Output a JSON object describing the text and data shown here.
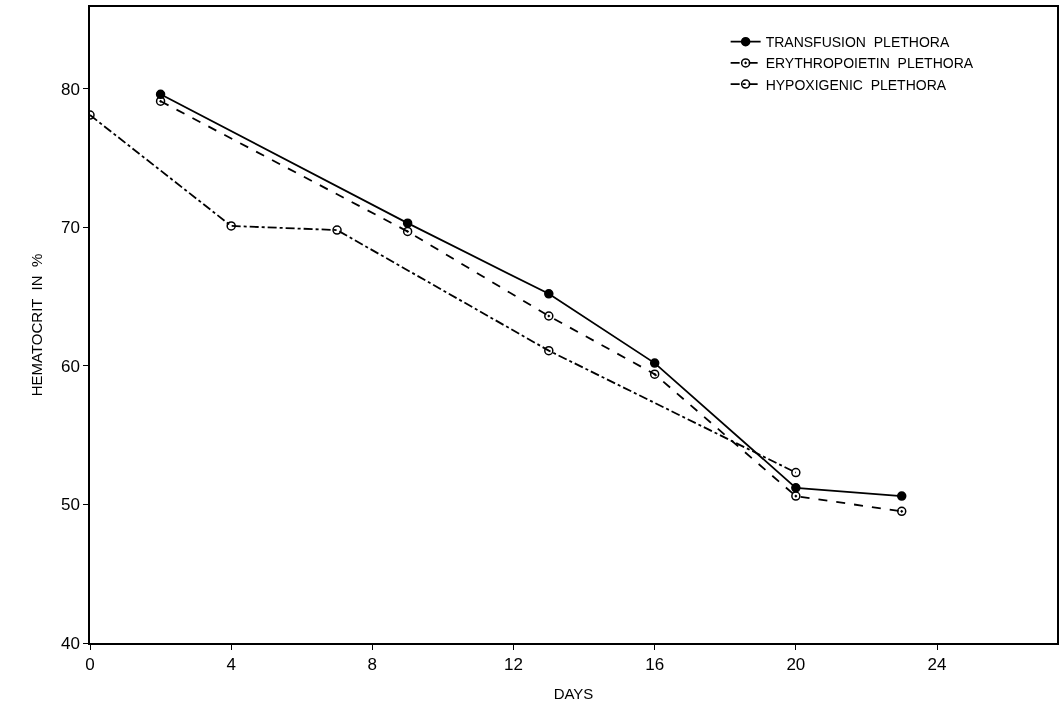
{
  "chart_data": {
    "type": "line",
    "xlabel": "DAYS",
    "ylabel": "HEMATOCRIT  IN  %",
    "xlim": [
      0,
      27.4
    ],
    "ylim": [
      40,
      85.9
    ],
    "xticks": [
      0,
      4,
      8,
      12,
      16,
      20,
      24
    ],
    "yticks": [
      40,
      50,
      60,
      70,
      80
    ],
    "legend": "top right",
    "series": [
      {
        "name": "TRANSFUSION  PLETHORA",
        "color": "#000000",
        "x": [
          2,
          9,
          13,
          16,
          20,
          23
        ],
        "values": [
          79.6,
          70.3,
          65.2,
          60.2,
          51.2,
          50.6
        ],
        "line_style": "solid",
        "marker": "circle"
      },
      {
        "name": "ERYTHROPOIETIN  PLETHORA",
        "color": "#000000",
        "x": [
          2,
          9,
          13,
          16,
          20,
          23
        ],
        "values": [
          79.1,
          69.7,
          63.6,
          59.4,
          50.6,
          49.5
        ],
        "line_style": "dashed",
        "marker": "circle-open-dot"
      },
      {
        "name": "HYPOXIGENIC  PLETHORA",
        "color": "#000000",
        "x": [
          0,
          4,
          7,
          13,
          20
        ],
        "values": [
          78.1,
          70.1,
          69.8,
          61.1,
          52.3
        ],
        "line_style": "dashdot",
        "marker": "circle-open"
      }
    ]
  }
}
